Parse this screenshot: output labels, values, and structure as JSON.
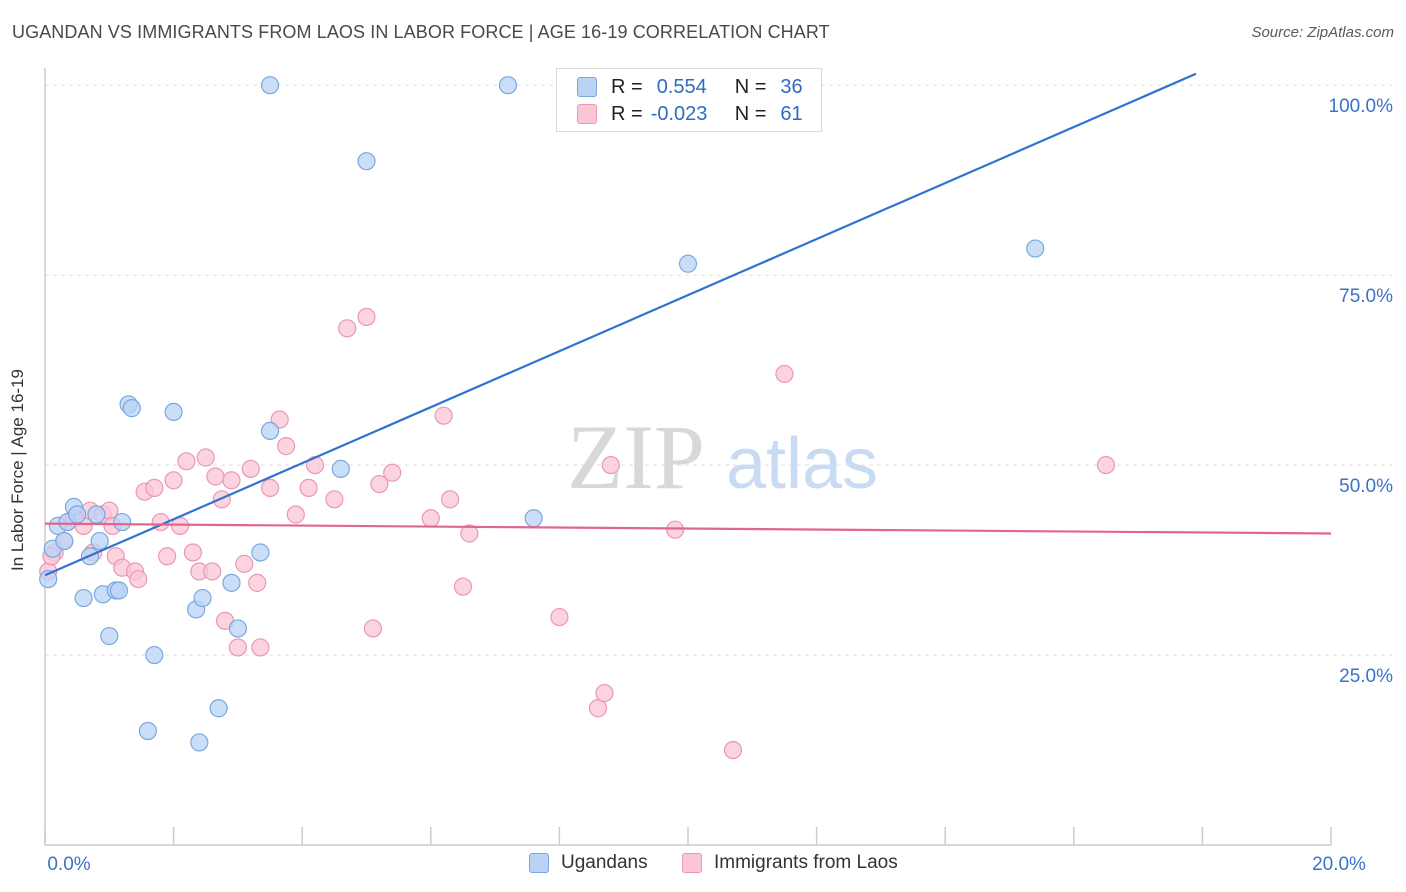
{
  "title": "UGANDAN VS IMMIGRANTS FROM LAOS IN LABOR FORCE | AGE 16-19 CORRELATION CHART",
  "source": "Source: ZipAtlas.com",
  "watermark": {
    "zip": "ZIP",
    "atlas": "atlas"
  },
  "colors": {
    "blue_fill": "#b9d3f5",
    "blue_stroke": "#7aa7e0",
    "blue_line": "#2f72d0",
    "pink_fill": "#f9c6d6",
    "pink_stroke": "#eb97b3",
    "pink_line": "#e0668f",
    "value_text": "#2f6bc2"
  },
  "legend": {
    "rows": [
      {
        "r_label": "R =",
        "r_value": "0.554",
        "n_label": "N =",
        "n_value": "36"
      },
      {
        "r_label": "R =",
        "r_value": "-0.023",
        "n_label": "N =",
        "n_value": "61"
      }
    ]
  },
  "bottom_legend": {
    "series1": "Ugandans",
    "series2": "Immigrants from Laos"
  },
  "chart_data": {
    "type": "scatter",
    "title": "UGANDAN VS IMMIGRANTS FROM LAOS IN LABOR FORCE | AGE 16-19 CORRELATION CHART",
    "xlabel": "",
    "ylabel": "In Labor Force | Age 16-19",
    "xlim": [
      0,
      20
    ],
    "ylim": [
      0,
      102
    ],
    "x_tick_labels": [
      {
        "value": 0,
        "label": "0.0%"
      },
      {
        "value": 20,
        "label": "20.0%"
      }
    ],
    "y_tick_labels": [
      {
        "value": 25,
        "label": "25.0%"
      },
      {
        "value": 50,
        "label": "50.0%"
      },
      {
        "value": 75,
        "label": "75.0%"
      },
      {
        "value": 100,
        "label": "100.0%"
      }
    ],
    "series": [
      {
        "name": "Ugandans",
        "r": 0.554,
        "n": 36,
        "trend": {
          "x": [
            0,
            17.9
          ],
          "y": [
            35.5,
            101.5
          ]
        },
        "points": [
          [
            0.05,
            35.0
          ],
          [
            0.12,
            39.0
          ],
          [
            0.2,
            42.0
          ],
          [
            0.3,
            40.0
          ],
          [
            0.35,
            42.5
          ],
          [
            0.45,
            44.5
          ],
          [
            0.5,
            43.5
          ],
          [
            0.6,
            32.5
          ],
          [
            0.7,
            38.0
          ],
          [
            0.8,
            43.5
          ],
          [
            0.85,
            40.0
          ],
          [
            0.9,
            33.0
          ],
          [
            1.0,
            27.5
          ],
          [
            1.1,
            33.5
          ],
          [
            1.15,
            33.5
          ],
          [
            1.2,
            42.5
          ],
          [
            1.3,
            58.0
          ],
          [
            1.35,
            57.5
          ],
          [
            1.7,
            25.0
          ],
          [
            1.6,
            15.0
          ],
          [
            2.0,
            57.0
          ],
          [
            2.35,
            31.0
          ],
          [
            2.4,
            13.5
          ],
          [
            2.45,
            32.5
          ],
          [
            2.7,
            18.0
          ],
          [
            2.9,
            34.5
          ],
          [
            3.0,
            28.5
          ],
          [
            3.35,
            38.5
          ],
          [
            3.5,
            54.5
          ],
          [
            3.5,
            100.0
          ],
          [
            4.6,
            49.5
          ],
          [
            5.0,
            90.0
          ],
          [
            7.2,
            100.0
          ],
          [
            7.6,
            43.0
          ],
          [
            10.0,
            76.5
          ],
          [
            15.4,
            78.5
          ]
        ]
      },
      {
        "name": "Immigrants from Laos",
        "r": -0.023,
        "n": 61,
        "trend": {
          "x": [
            0,
            20
          ],
          "y": [
            42.3,
            41.0
          ]
        },
        "points": [
          [
            0.05,
            36.0
          ],
          [
            0.15,
            38.5
          ],
          [
            0.3,
            40.0
          ],
          [
            0.35,
            42.5
          ],
          [
            0.45,
            43.0
          ],
          [
            0.6,
            42.0
          ],
          [
            0.7,
            44.0
          ],
          [
            0.75,
            38.5
          ],
          [
            0.9,
            43.5
          ],
          [
            1.0,
            44.0
          ],
          [
            1.05,
            42.0
          ],
          [
            1.1,
            38.0
          ],
          [
            1.2,
            36.5
          ],
          [
            1.4,
            36.0
          ],
          [
            1.45,
            35.0
          ],
          [
            1.55,
            46.5
          ],
          [
            1.7,
            47.0
          ],
          [
            1.8,
            42.5
          ],
          [
            1.9,
            38.0
          ],
          [
            2.0,
            48.0
          ],
          [
            2.1,
            42.0
          ],
          [
            2.2,
            50.5
          ],
          [
            2.3,
            38.5
          ],
          [
            2.4,
            36.0
          ],
          [
            2.5,
            51.0
          ],
          [
            2.6,
            36.0
          ],
          [
            2.65,
            48.5
          ],
          [
            2.75,
            45.5
          ],
          [
            2.8,
            29.5
          ],
          [
            2.9,
            48.0
          ],
          [
            3.0,
            26.0
          ],
          [
            3.1,
            37.0
          ],
          [
            3.2,
            49.5
          ],
          [
            3.3,
            34.5
          ],
          [
            3.35,
            26.0
          ],
          [
            3.5,
            47.0
          ],
          [
            3.65,
            56.0
          ],
          [
            3.75,
            52.5
          ],
          [
            3.9,
            43.5
          ],
          [
            4.1,
            47.0
          ],
          [
            4.2,
            50.0
          ],
          [
            4.5,
            45.5
          ],
          [
            4.7,
            68.0
          ],
          [
            5.0,
            69.5
          ],
          [
            5.1,
            28.5
          ],
          [
            5.2,
            47.5
          ],
          [
            5.4,
            49.0
          ],
          [
            6.0,
            43.0
          ],
          [
            6.2,
            56.5
          ],
          [
            6.3,
            45.5
          ],
          [
            6.5,
            34.0
          ],
          [
            6.6,
            41.0
          ],
          [
            8.0,
            30.0
          ],
          [
            8.6,
            18.0
          ],
          [
            8.7,
            20.0
          ],
          [
            8.8,
            50.0
          ],
          [
            9.8,
            41.5
          ],
          [
            10.7,
            12.5
          ],
          [
            11.5,
            62.0
          ],
          [
            16.5,
            50.0
          ],
          [
            0.1,
            38.0
          ]
        ]
      }
    ]
  }
}
